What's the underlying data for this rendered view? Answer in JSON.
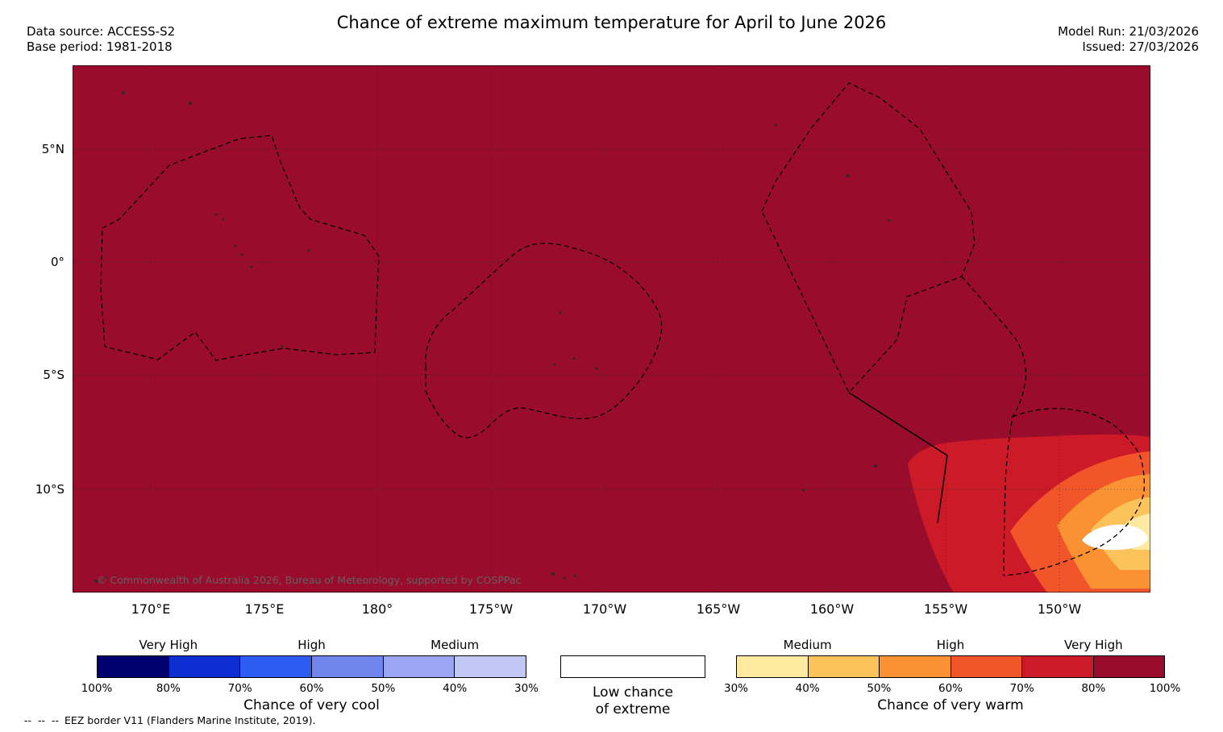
{
  "header": {
    "title": "Chance of extreme maximum temperature for April to June 2026",
    "data_source": "Data source: ACCESS-S2",
    "base_period": "Base period: 1981-2018",
    "model_run": "Model Run: 21/03/2026",
    "issued": "Issued: 27/03/2026"
  },
  "map": {
    "copyright": "© Commonwealth of Australia 2026, Bureau of Meteorology, supported by COSPPac",
    "lat_labels": [
      "5°N",
      "0°",
      "5°S",
      "10°S"
    ],
    "lon_labels": [
      "170°E",
      "175°E",
      "180°",
      "175°W",
      "170°W",
      "165°W",
      "160°W",
      "155°W",
      "150°W"
    ]
  },
  "legend": {
    "cool": {
      "caption": "Chance of very cool",
      "levels": [
        "Very High",
        "High",
        "Medium"
      ],
      "ticks": [
        "100%",
        "80%",
        "70%",
        "60%",
        "50%",
        "40%",
        "30%"
      ],
      "colors": [
        "#00006E",
        "#0D2ED0",
        "#2E5BF2",
        "#7185EE",
        "#9AA6F2",
        "#C2C8F6"
      ]
    },
    "low": {
      "line1": "Low chance",
      "line2": "of extreme",
      "color": "#FFFFFF"
    },
    "warm": {
      "caption": "Chance of very warm",
      "levels": [
        "Medium",
        "High",
        "Very High"
      ],
      "ticks": [
        "30%",
        "40%",
        "50%",
        "60%",
        "70%",
        "80%",
        "100%"
      ],
      "colors": [
        "#FFE9A0",
        "#FCC35A",
        "#FA9132",
        "#F2552A",
        "#CD1A28",
        "#9A0C2B"
      ]
    }
  },
  "footer": {
    "symbol": "--  --  --",
    "label": "EEZ border V11 (Flanders Marine Institute, 2019)."
  }
}
